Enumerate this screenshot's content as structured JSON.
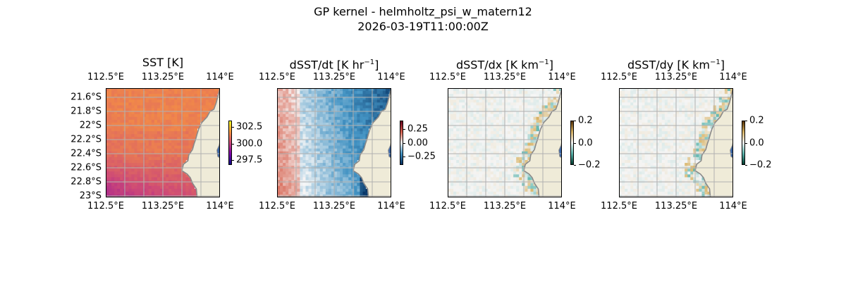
{
  "figure": {
    "title_line1": "GP kernel - helmholtz_psi_w_matern12",
    "title_line2": "2026-03-19T11:00:00Z"
  },
  "chart_data": [
    {
      "type": "heatmap",
      "title": "SST [K]",
      "title_sup": "",
      "title_end": "",
      "x_ticks": [
        "112.5°E",
        "113.25°E",
        "114°E"
      ],
      "x_tick_values": [
        112.5,
        113.25,
        114.0
      ],
      "y_ticks": [
        "21.6°S",
        "21.8°S",
        "22°S",
        "22.2°S",
        "22.4°S",
        "22.6°S",
        "22.8°S",
        "23°S"
      ],
      "y_tick_values": [
        -21.6,
        -21.8,
        -22.0,
        -22.2,
        -22.4,
        -22.6,
        -22.8,
        -23.0
      ],
      "xlim": [
        112.5,
        114.0
      ],
      "ylim": [
        -23.02,
        -21.47
      ],
      "colorbar": {
        "ticks": [
          "302.5",
          "300.0",
          "297.5"
        ],
        "tick_values": [
          302.5,
          300.0,
          297.5
        ],
        "range": [
          296.8,
          303.5
        ],
        "colormap": "plasma"
      },
      "field": "sst",
      "grid": true
    },
    {
      "type": "heatmap",
      "title": "dSST/dt [K hr",
      "title_sup": "−1",
      "title_end": "]",
      "x_ticks": [
        "112.5°E",
        "113.25°E",
        "114°E"
      ],
      "x_tick_values": [
        112.5,
        113.25,
        114.0
      ],
      "y_ticks": [],
      "y_tick_values": [],
      "xlim": [
        112.5,
        114.0
      ],
      "ylim": [
        -23.02,
        -21.47
      ],
      "colorbar": {
        "ticks": [
          "0.25",
          "0.00",
          "−0.25"
        ],
        "tick_values": [
          0.25,
          0.0,
          -0.25
        ],
        "range": [
          -0.4,
          0.4
        ],
        "colormap": "RdBu_r"
      },
      "field": "dt",
      "grid": true
    },
    {
      "type": "heatmap",
      "title": "dSST/dx [K km",
      "title_sup": "−1",
      "title_end": "]",
      "x_ticks": [
        "112.5°E",
        "113.25°E",
        "114°E"
      ],
      "x_tick_values": [
        112.5,
        113.25,
        114.0
      ],
      "y_ticks": [],
      "y_tick_values": [],
      "xlim": [
        112.5,
        114.0
      ],
      "ylim": [
        -23.02,
        -21.47
      ],
      "colorbar": {
        "ticks": [
          "0.2",
          "0.0",
          "−0.2"
        ],
        "tick_values": [
          0.2,
          0.0,
          -0.2
        ],
        "range": [
          -0.2,
          0.2
        ],
        "colormap": "BrBG_r"
      },
      "field": "dx",
      "grid": true
    },
    {
      "type": "heatmap",
      "title": "dSST/dy [K km",
      "title_sup": "−1",
      "title_end": "]",
      "x_ticks": [
        "112.5°E",
        "113.25°E",
        "114°E"
      ],
      "x_tick_values": [
        112.5,
        113.25,
        114.0
      ],
      "y_ticks": [],
      "y_tick_values": [],
      "xlim": [
        112.5,
        114.0
      ],
      "ylim": [
        -23.02,
        -21.47
      ],
      "colorbar": {
        "ticks": [
          "0.2",
          "0.0",
          "−0.2"
        ],
        "tick_values": [
          0.2,
          0.0,
          -0.2
        ],
        "range": [
          -0.2,
          0.2
        ],
        "colormap": "BrBG_r"
      },
      "field": "dy",
      "grid": true
    }
  ],
  "colors": {
    "land": "#efebd8",
    "coast": "#8a8a8a",
    "grid": "#b0b0b0",
    "nodata": "#9fb4e0"
  }
}
